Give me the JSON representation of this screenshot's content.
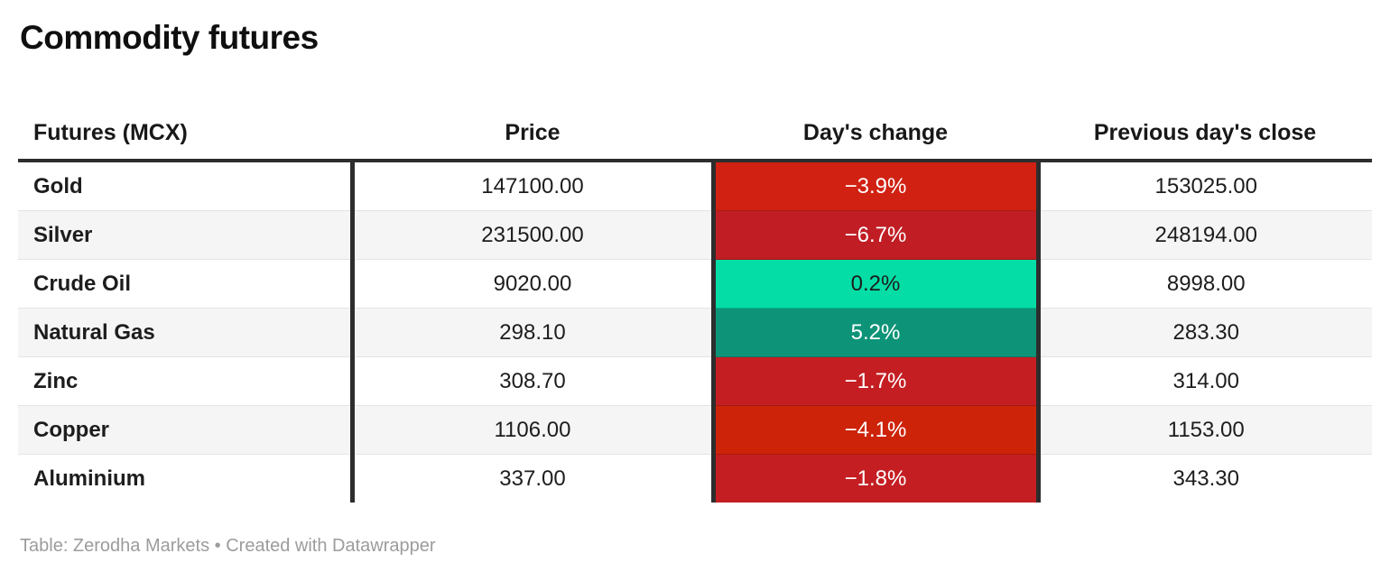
{
  "page": {
    "title": "Commodity futures",
    "attribution": "Table: Zerodha Markets • Created with Datawrapper"
  },
  "colors": {
    "header_rule": "#2d2d2d",
    "row_stripe": "#f5f5f5",
    "row_divider": "#e4e4e4",
    "attribution_text": "#9c9c9c",
    "negative_red_bright": "#d02112",
    "negative_red_dark": "#c11d24",
    "positive_mint": "#04dda5",
    "positive_teal": "#0d9478"
  },
  "chart_data": {
    "type": "table",
    "title": "Commodity futures",
    "columns": [
      "Futures (MCX)",
      "Price",
      "Day's change",
      "Previous day's close"
    ],
    "rows": [
      {
        "name": "Gold",
        "price": "147100.00",
        "change": "−3.9%",
        "prev_close": "153025.00",
        "change_bg": "#d02112",
        "change_fg": "#ffffff"
      },
      {
        "name": "Silver",
        "price": "231500.00",
        "change": "−6.7%",
        "prev_close": "248194.00",
        "change_bg": "#c11d24",
        "change_fg": "#ffffff"
      },
      {
        "name": "Crude Oil",
        "price": "9020.00",
        "change": "0.2%",
        "prev_close": "8998.00",
        "change_bg": "#04dda5",
        "change_fg": "#1c1c1c"
      },
      {
        "name": "Natural Gas",
        "price": "298.10",
        "change": "5.2%",
        "prev_close": "283.30",
        "change_bg": "#0d9478",
        "change_fg": "#ffffff"
      },
      {
        "name": "Zinc",
        "price": "308.70",
        "change": "−1.7%",
        "prev_close": "314.00",
        "change_bg": "#c41e22",
        "change_fg": "#ffffff"
      },
      {
        "name": "Copper",
        "price": "1106.00",
        "change": "−4.1%",
        "prev_close": "1153.00",
        "change_bg": "#cd2309",
        "change_fg": "#ffffff"
      },
      {
        "name": "Aluminium",
        "price": "337.00",
        "change": "−1.8%",
        "prev_close": "343.30",
        "change_bg": "#c41e22",
        "change_fg": "#ffffff"
      }
    ]
  }
}
